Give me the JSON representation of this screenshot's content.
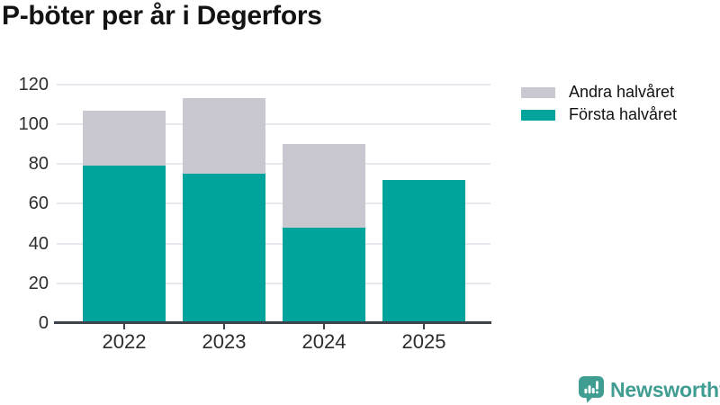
{
  "header": {
    "title": "P-böter per år i Degerfors"
  },
  "legend": {
    "items": [
      {
        "label": "Andra halvåret",
        "color": "#c9c7d0"
      },
      {
        "label": "Första halvåret",
        "color": "#00a49c"
      }
    ]
  },
  "chart_data": {
    "type": "bar",
    "stacked": true,
    "title": "P-böter per år i Degerfors",
    "categories": [
      "2022",
      "2023",
      "2024",
      "2025"
    ],
    "series": [
      {
        "name": "Första halvåret",
        "color": "#00a49c",
        "values": [
          79,
          75,
          48,
          72
        ]
      },
      {
        "name": "Andra halvåret",
        "color": "#c9c7d0",
        "values": [
          28,
          38,
          42,
          0
        ]
      }
    ],
    "totals": [
      107,
      113,
      90,
      72
    ],
    "xlabel": "",
    "ylabel": "",
    "ylim": [
      0,
      120
    ],
    "yticks": [
      0,
      20,
      40,
      60,
      80,
      100,
      120
    ],
    "grid": "horizontal",
    "legend_position": "top-right",
    "colors": {
      "first_half": "#00a49c",
      "second_half": "#c9c7d0",
      "grid": "#e9e8ee",
      "axis": "#3e444b",
      "tick_text": "#2d2d2d"
    }
  },
  "footer": {
    "brand": "Newsworthy",
    "brand_color": "#3f9d92",
    "icon": "bar-chart-speech-bubble-icon"
  }
}
